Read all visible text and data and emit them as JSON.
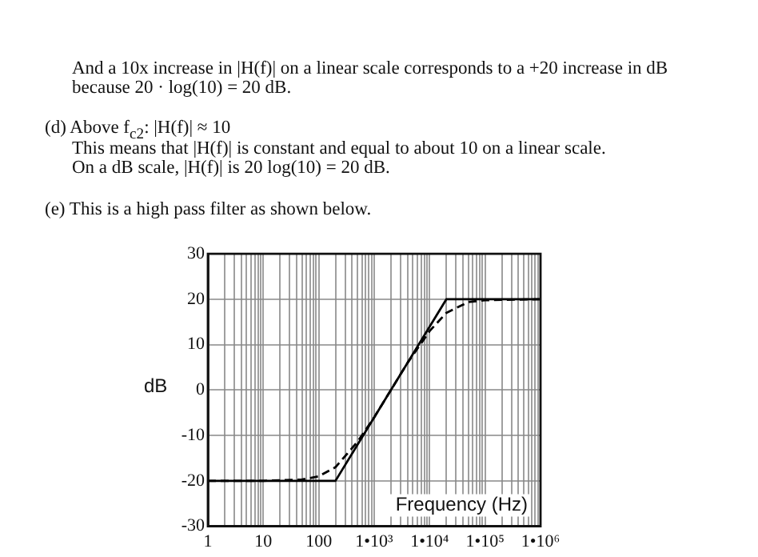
{
  "chart_data": {
    "type": "line",
    "xlabel": "Frequency (Hz)",
    "ylabel": "dB",
    "annotations": [
      "And a 10x increase in |H(f)| on a linear scale corresponds to a +20 increase in dB",
      "because 20 · log(10) = 20 dB.",
      "(d) Above f$_{c2}$:  |H(f)| ≈ 10",
      "This means that |H(f)| is constant and equal to about 10 on a linear scale.",
      "On a dB scale, |H(f)| is 20 log(10) = 20 dB.",
      "(e) This is a high pass filter as shown below."
    ],
    "log": "x",
    "grid": true,
    "legend": false,
    "marker": "none",
    "xlim": [
      1,
      1000000
    ],
    "ylim": [
      -30,
      30
    ],
    "yticks": [
      -30,
      -20,
      -10,
      0,
      10,
      20,
      30
    ],
    "xticks": [
      1,
      {
        "value": 2,
        "label": null
      },
      {
        "value": 3,
        "label": null
      },
      {
        "value": 4,
        "label": null
      },
      {
        "value": 5,
        "label": null
      },
      {
        "value": 6,
        "label": null
      },
      {
        "value": 7,
        "label": null
      },
      {
        "value": 8,
        "label": null
      },
      {
        "value": 9,
        "label": null
      },
      10,
      {
        "value": 20,
        "label": null
      },
      {
        "value": 30,
        "label": null
      },
      {
        "value": 40,
        "label": null
      },
      {
        "value": 50,
        "label": null
      },
      {
        "value": 60,
        "label": null
      },
      {
        "value": 70,
        "label": null
      },
      {
        "value": 80,
        "label": null
      },
      {
        "value": 90,
        "label": null
      },
      100,
      {
        "value": 200,
        "label": null
      },
      {
        "value": 300,
        "label": null
      },
      {
        "value": 400,
        "label": null
      },
      {
        "value": 500,
        "label": null
      },
      {
        "value": 600,
        "label": null
      },
      {
        "value": 700,
        "label": null
      },
      {
        "value": 800,
        "label": null
      },
      {
        "value": 900,
        "label": null
      },
      {
        "value": 1000,
        "label": "1•10³"
      },
      {
        "value": 2000,
        "label": null
      },
      {
        "value": 3000,
        "label": null
      },
      {
        "value": 4000,
        "label": null
      },
      {
        "value": 5000,
        "label": null
      },
      {
        "value": 6000,
        "label": null
      },
      {
        "value": 7000,
        "label": null
      },
      {
        "value": 8000,
        "label": null
      },
      {
        "value": 9000,
        "label": null
      },
      {
        "value": 10000,
        "label": "1•10⁴"
      },
      {
        "value": 20000,
        "label": null
      },
      {
        "value": 30000,
        "label": null
      },
      {
        "value": 40000,
        "label": null
      },
      {
        "value": 50000,
        "label": null
      },
      {
        "value": 60000,
        "label": null
      },
      {
        "value": 70000,
        "label": null
      },
      {
        "value": 80000,
        "label": null
      },
      {
        "value": 90000,
        "label": null
      },
      {
        "value": 100000,
        "label": "1•10⁵"
      },
      {
        "value": 200000,
        "label": null
      },
      {
        "value": 300000,
        "label": null
      },
      {
        "value": 400000,
        "label": null
      },
      {
        "value": 500000,
        "label": null
      },
      {
        "value": 600000,
        "label": null
      },
      {
        "value": 700000,
        "label": null
      },
      {
        "value": 800000,
        "label": null
      },
      {
        "value": 900000,
        "label": null
      },
      {
        "value": 1000000,
        "label": "1•10⁶"
      }
    ],
    "series": [
      {
        "color": "#000000",
        "line_style": "solid",
        "x": [
          1,
          200,
          20000,
          1000000
        ],
        "values": [
          -20,
          -20,
          20,
          20
        ]
      },
      {
        "color": "#000000",
        "line_style": "dashed",
        "x": [
          1,
          10,
          50,
          100,
          200,
          500,
          1000,
          2000,
          4000,
          10000,
          20000,
          50000,
          100000,
          1000000
        ],
        "values": [
          -20,
          -20,
          -19.7,
          -19,
          -17,
          -11.4,
          -6,
          0,
          6,
          13,
          17,
          19.4,
          19.8,
          20
        ]
      }
    ]
  }
}
